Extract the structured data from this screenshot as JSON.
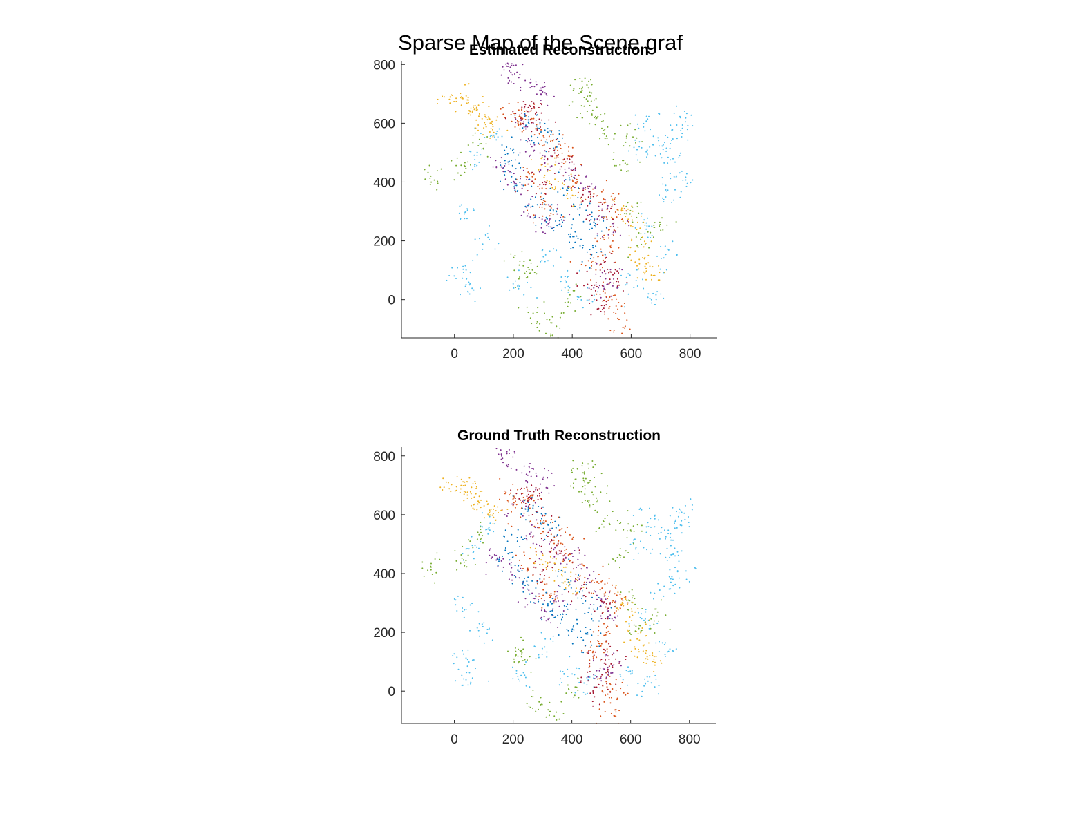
{
  "figure": {
    "title": "Sparse Map of the Scene graf"
  },
  "palette": [
    "#0072BD",
    "#D95319",
    "#EDB120",
    "#7E2F8E",
    "#77AC30",
    "#4DBEEE",
    "#A2142F"
  ],
  "chart_data": [
    {
      "type": "scatter",
      "title": "Estimated Reconstruction",
      "xlabel": "",
      "ylabel": "",
      "xlim": [
        -180,
        890
      ],
      "ylim": [
        -130,
        810
      ],
      "xticks": [
        0,
        200,
        400,
        600,
        800
      ],
      "yticks": [
        0,
        200,
        400,
        600,
        800
      ],
      "grid": false,
      "legend": "none",
      "marker": "point",
      "clusters": [
        {
          "color_index": 5,
          "points": [
            [
              700,
              520
            ],
            [
              740,
              470
            ],
            [
              760,
              560
            ],
            [
              660,
              600
            ],
            [
              770,
              400
            ],
            [
              720,
              360
            ],
            [
              630,
              500
            ],
            [
              780,
              610
            ],
            [
              120,
              560
            ],
            [
              60,
              480
            ],
            [
              40,
              300
            ],
            [
              30,
              100
            ],
            [
              50,
              40
            ],
            [
              100,
              200
            ],
            [
              220,
              50
            ],
            [
              300,
              150
            ],
            [
              380,
              60
            ],
            [
              450,
              20
            ],
            [
              600,
              50
            ],
            [
              680,
              10
            ],
            [
              720,
              150
            ],
            [
              650,
              250
            ]
          ]
        },
        {
          "color_index": 4,
          "points": [
            [
              420,
              700
            ],
            [
              460,
              660
            ],
            [
              440,
              730
            ],
            [
              480,
              620
            ],
            [
              520,
              560
            ],
            [
              -80,
              410
            ],
            [
              20,
              440
            ],
            [
              80,
              520
            ],
            [
              600,
              300
            ],
            [
              640,
              200
            ],
            [
              700,
              250
            ],
            [
              280,
              -50
            ],
            [
              330,
              -90
            ],
            [
              400,
              0
            ],
            [
              250,
              100
            ],
            [
              220,
              130
            ],
            [
              560,
              450
            ],
            [
              600,
              560
            ]
          ]
        },
        {
          "color_index": 3,
          "points": [
            [
              180,
              790
            ],
            [
              190,
              760
            ],
            [
              270,
              720
            ],
            [
              300,
              700
            ],
            [
              230,
              600
            ],
            [
              260,
              520
            ],
            [
              320,
              470
            ],
            [
              400,
              440
            ],
            [
              450,
              380
            ],
            [
              500,
              300
            ],
            [
              540,
              250
            ],
            [
              350,
              300
            ],
            [
              300,
              250
            ],
            [
              250,
              300
            ],
            [
              200,
              400
            ],
            [
              150,
              450
            ],
            [
              520,
              80
            ],
            [
              500,
              40
            ]
          ]
        },
        {
          "color_index": 1,
          "points": [
            [
              200,
              640
            ],
            [
              240,
              620
            ],
            [
              210,
              600
            ],
            [
              300,
              560
            ],
            [
              350,
              520
            ],
            [
              380,
              480
            ],
            [
              420,
              400
            ],
            [
              480,
              360
            ],
            [
              530,
              330
            ],
            [
              560,
              280
            ],
            [
              520,
              200
            ],
            [
              500,
              150
            ],
            [
              460,
              120
            ],
            [
              520,
              20
            ],
            [
              540,
              -20
            ],
            [
              560,
              -100
            ],
            [
              260,
              420
            ],
            [
              300,
              350
            ],
            [
              330,
              300
            ]
          ]
        },
        {
          "color_index": 0,
          "points": [
            [
              250,
              600
            ],
            [
              290,
              580
            ],
            [
              330,
              540
            ],
            [
              200,
              500
            ],
            [
              180,
              450
            ],
            [
              220,
              380
            ],
            [
              270,
              330
            ],
            [
              320,
              280
            ],
            [
              370,
              250
            ],
            [
              410,
              200
            ],
            [
              460,
              160
            ],
            [
              480,
              260
            ],
            [
              430,
              320
            ],
            [
              380,
              380
            ]
          ]
        },
        {
          "color_index": 2,
          "points": [
            [
              0,
              680
            ],
            [
              30,
              670
            ],
            [
              60,
              650
            ],
            [
              80,
              630
            ],
            [
              110,
              600
            ],
            [
              130,
              580
            ],
            [
              560,
              300
            ],
            [
              600,
              250
            ],
            [
              620,
              180
            ],
            [
              650,
              120
            ],
            [
              680,
              100
            ],
            [
              300,
              450
            ],
            [
              350,
              400
            ],
            [
              400,
              350
            ]
          ]
        },
        {
          "color_index": 6,
          "points": [
            [
              230,
              650
            ],
            [
              250,
              640
            ],
            [
              280,
              610
            ],
            [
              330,
              500
            ],
            [
              370,
              440
            ],
            [
              440,
              340
            ],
            [
              500,
              280
            ],
            [
              520,
              120
            ],
            [
              540,
              60
            ],
            [
              500,
              -20
            ],
            [
              470,
              50
            ],
            [
              280,
              400
            ]
          ]
        }
      ]
    },
    {
      "type": "scatter",
      "title": "Ground Truth Reconstruction",
      "xlabel": "",
      "ylabel": "",
      "xlim": [
        -180,
        890
      ],
      "ylim": [
        -110,
        830
      ],
      "xticks": [
        0,
        200,
        400,
        600,
        800
      ],
      "yticks": [
        0,
        200,
        400,
        600,
        800
      ],
      "grid": false,
      "legend": "none",
      "marker": "point",
      "clusters": [
        {
          "color_index": 5,
          "points": [
            [
              700,
              520
            ],
            [
              740,
              470
            ],
            [
              760,
              560
            ],
            [
              660,
              600
            ],
            [
              770,
              400
            ],
            [
              720,
              360
            ],
            [
              630,
              500
            ],
            [
              780,
              610
            ],
            [
              120,
              560
            ],
            [
              60,
              480
            ],
            [
              40,
              300
            ],
            [
              30,
              100
            ],
            [
              50,
              40
            ],
            [
              100,
              200
            ],
            [
              220,
              50
            ],
            [
              300,
              150
            ],
            [
              380,
              60
            ],
            [
              450,
              20
            ],
            [
              600,
              50
            ],
            [
              680,
              10
            ],
            [
              720,
              150
            ],
            [
              650,
              250
            ]
          ]
        },
        {
          "color_index": 4,
          "points": [
            [
              420,
              720
            ],
            [
              460,
              680
            ],
            [
              440,
              750
            ],
            [
              480,
              640
            ],
            [
              520,
              580
            ],
            [
              -80,
              420
            ],
            [
              20,
              450
            ],
            [
              80,
              530
            ],
            [
              600,
              310
            ],
            [
              640,
              210
            ],
            [
              700,
              260
            ],
            [
              280,
              -40
            ],
            [
              330,
              -80
            ],
            [
              400,
              10
            ],
            [
              250,
              110
            ],
            [
              220,
              140
            ],
            [
              560,
              460
            ],
            [
              600,
              570
            ]
          ]
        },
        {
          "color_index": 3,
          "points": [
            [
              180,
              820
            ],
            [
              190,
              780
            ],
            [
              270,
              740
            ],
            [
              300,
              720
            ],
            [
              230,
              620
            ],
            [
              260,
              530
            ],
            [
              320,
              480
            ],
            [
              400,
              450
            ],
            [
              450,
              390
            ],
            [
              500,
              310
            ],
            [
              540,
              260
            ],
            [
              350,
              310
            ],
            [
              300,
              260
            ],
            [
              250,
              310
            ],
            [
              200,
              410
            ],
            [
              150,
              460
            ],
            [
              520,
              90
            ],
            [
              500,
              50
            ]
          ]
        },
        {
          "color_index": 1,
          "points": [
            [
              200,
              660
            ],
            [
              240,
              640
            ],
            [
              210,
              620
            ],
            [
              300,
              570
            ],
            [
              350,
              530
            ],
            [
              380,
              490
            ],
            [
              420,
              410
            ],
            [
              480,
              370
            ],
            [
              530,
              340
            ],
            [
              560,
              290
            ],
            [
              520,
              210
            ],
            [
              500,
              160
            ],
            [
              460,
              130
            ],
            [
              520,
              30
            ],
            [
              540,
              -10
            ],
            [
              540,
              -90
            ],
            [
              260,
              430
            ],
            [
              300,
              360
            ],
            [
              330,
              310
            ]
          ]
        },
        {
          "color_index": 0,
          "points": [
            [
              250,
              620
            ],
            [
              290,
              600
            ],
            [
              330,
              550
            ],
            [
              200,
              510
            ],
            [
              180,
              460
            ],
            [
              220,
              390
            ],
            [
              270,
              340
            ],
            [
              320,
              290
            ],
            [
              370,
              260
            ],
            [
              410,
              210
            ],
            [
              460,
              170
            ],
            [
              480,
              270
            ],
            [
              430,
              330
            ],
            [
              380,
              390
            ]
          ]
        },
        {
          "color_index": 2,
          "points": [
            [
              0,
              700
            ],
            [
              30,
              690
            ],
            [
              60,
              670
            ],
            [
              80,
              650
            ],
            [
              110,
              620
            ],
            [
              130,
              600
            ],
            [
              560,
              310
            ],
            [
              600,
              260
            ],
            [
              620,
              190
            ],
            [
              650,
              130
            ],
            [
              680,
              110
            ],
            [
              300,
              460
            ],
            [
              350,
              410
            ],
            [
              400,
              360
            ]
          ]
        },
        {
          "color_index": 6,
          "points": [
            [
              230,
              670
            ],
            [
              250,
              660
            ],
            [
              280,
              630
            ],
            [
              330,
              510
            ],
            [
              370,
              450
            ],
            [
              440,
              350
            ],
            [
              500,
              290
            ],
            [
              520,
              130
            ],
            [
              540,
              70
            ],
            [
              500,
              -10
            ],
            [
              470,
              60
            ],
            [
              280,
              410
            ]
          ]
        }
      ]
    }
  ]
}
